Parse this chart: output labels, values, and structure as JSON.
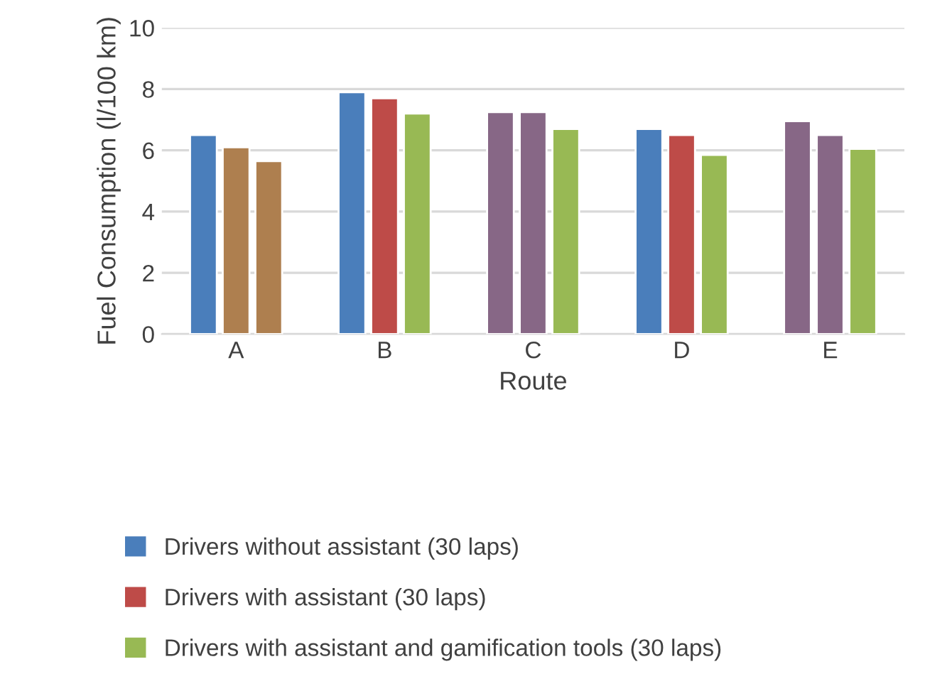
{
  "chart_data": {
    "type": "bar",
    "xlabel": "Route",
    "ylabel": "Fuel Consumption (l/100 km)",
    "categories": [
      "A",
      "B",
      "C",
      "D",
      "E"
    ],
    "series": [
      {
        "name": "Drivers without assistant (30 laps)",
        "color": "#4a7ebb",
        "colors": [
          "#4a7ebb",
          "#4a7ebb",
          "#876786",
          "#4a7ebb",
          "#876786"
        ],
        "values": [
          6.5,
          7.9,
          7.25,
          6.7,
          6.95
        ]
      },
      {
        "name": "Drivers with assistant (30 laps)",
        "color": "#be4b48",
        "colors": [
          "#ae7f4f",
          "#be4b48",
          "#876786",
          "#be4b48",
          "#876786"
        ],
        "values": [
          6.1,
          7.7,
          7.25,
          6.5,
          6.5
        ]
      },
      {
        "name": "Drivers with assistant and gamification tools (30 laps)",
        "color": "#98b954",
        "colors": [
          "#ae7f4f",
          "#98b954",
          "#98b954",
          "#98b954",
          "#98b954"
        ],
        "values": [
          5.65,
          7.2,
          6.7,
          5.85,
          6.05
        ]
      }
    ],
    "ylim": [
      0,
      10
    ],
    "yticks": [
      0,
      2,
      4,
      6,
      8,
      10
    ],
    "grid": "y",
    "legend": "bottom"
  }
}
